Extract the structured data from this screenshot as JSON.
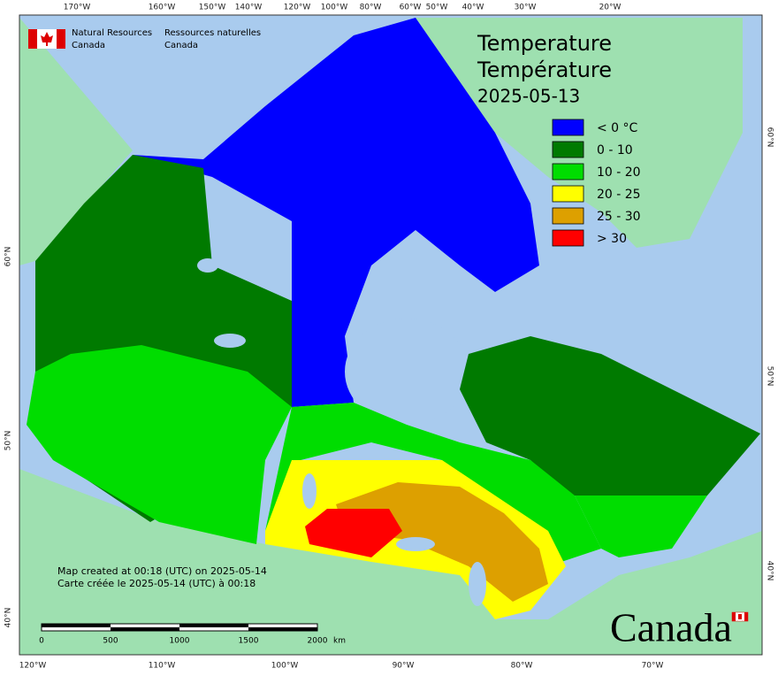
{
  "agency": {
    "en": [
      "Natural Resources",
      "Canada"
    ],
    "fr": [
      "Ressources naturelles",
      "Canada"
    ]
  },
  "title": [
    "Temperature",
    "Température"
  ],
  "date": "2025-05-13",
  "legend": [
    {
      "label": "< 0 °C",
      "color": "#0000ff"
    },
    {
      "label": "0 - 10",
      "color": "#007a00"
    },
    {
      "label": "10 - 20",
      "color": "#00dd00"
    },
    {
      "label": "20 - 25",
      "color": "#ffff00"
    },
    {
      "label": "25 - 30",
      "color": "#dda000"
    },
    {
      "label": "> 30",
      "color": "#ff0000"
    }
  ],
  "top_labels": [
    "170°W",
    "160°W",
    "150°W",
    "140°W",
    "120°W",
    "100°W",
    "80°W",
    "60°W",
    "50°W",
    "40°W",
    "30°W",
    "20°W"
  ],
  "bottom_labels": [
    "120°W",
    "110°W",
    "100°W",
    "90°W",
    "80°W",
    "70°W"
  ],
  "left_labels": [
    "60°N",
    "50°N",
    "40°N"
  ],
  "right_labels": [
    "60°N",
    "50°N",
    "40°N"
  ],
  "credit": [
    "Map created at 00:18 (UTC) on 2025-05-14",
    "Carte créée le 2025-05-14 (UTC) à 00:18"
  ],
  "scale": {
    "ticks": [
      "0",
      "500",
      "1000",
      "1500",
      "2000"
    ],
    "unit": "km"
  },
  "wordmark": "Canada"
}
